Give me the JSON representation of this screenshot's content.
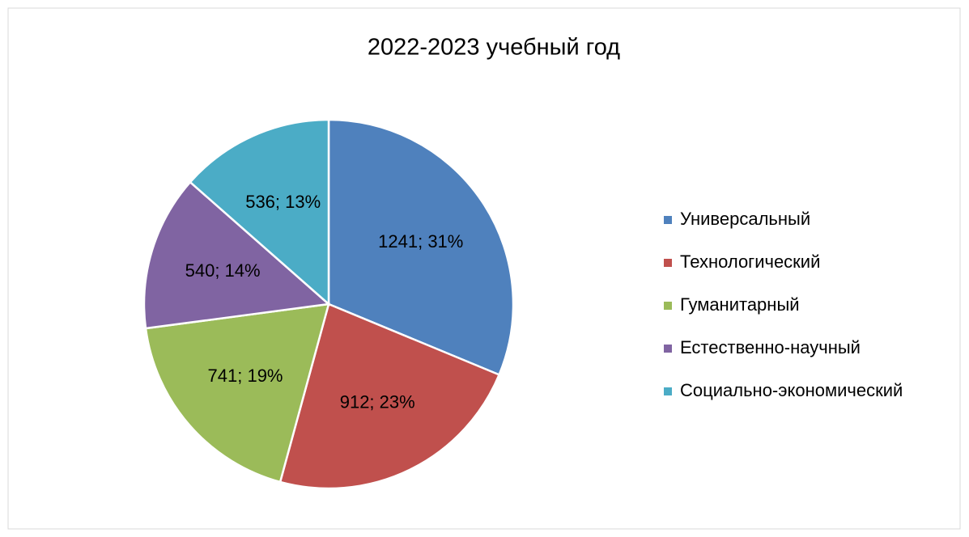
{
  "chart_data": {
    "type": "pie",
    "title": "2022-2023 учебный год",
    "categories": [
      "Универсальный",
      "Технологический",
      "Гуманитарный",
      "Естественно-научный",
      "Социально-экономический"
    ],
    "values": [
      1241,
      912,
      741,
      540,
      536
    ],
    "value_labels": [
      "1241; 31%",
      "912; 23%",
      "741; 19%",
      "540; 14%",
      "536; 13%"
    ],
    "colors": [
      "#4f81bd",
      "#c0504d",
      "#9bbb59",
      "#8064a2",
      "#4bacc6"
    ],
    "legend": "right"
  }
}
